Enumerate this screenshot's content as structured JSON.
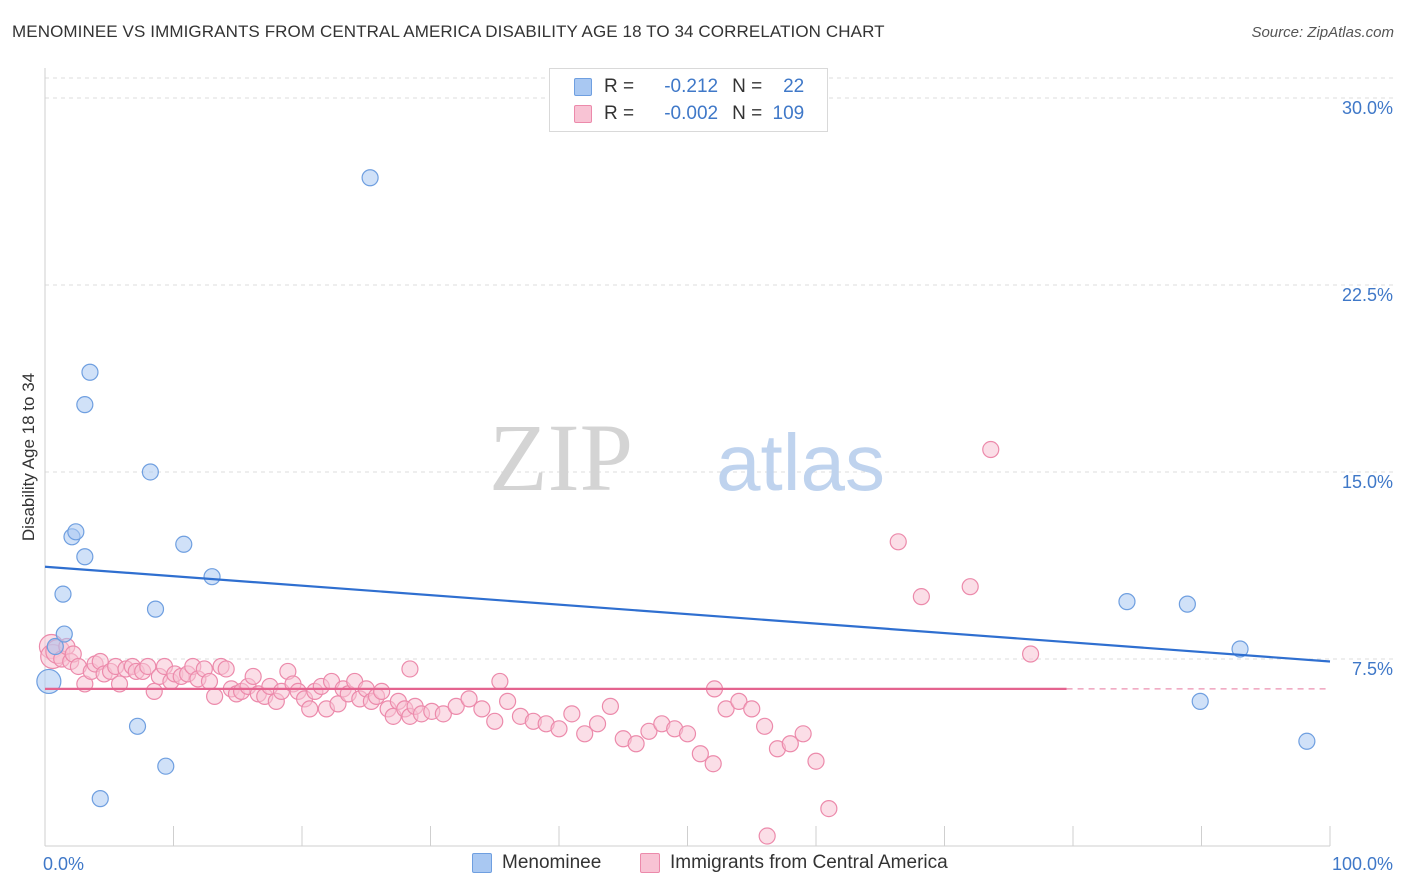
{
  "title": "MENOMINEE VS IMMIGRANTS FROM CENTRAL AMERICA DISABILITY AGE 18 TO 34 CORRELATION CHART",
  "source": "Source: ZipAtlas.com",
  "watermark": {
    "zip": "ZIP",
    "atlas": "atlas"
  },
  "legend": {
    "rows": [
      {
        "r_label": "R =",
        "r_value": "-0.212",
        "n_label": "N =",
        "n_value": "22",
        "color": "#a9c8f2",
        "border": "#6f9fe0"
      },
      {
        "r_label": "R =",
        "r_value": "-0.002",
        "n_label": "N =",
        "n_value": "109",
        "color": "#f8c3d4",
        "border": "#ec8aab"
      }
    ]
  },
  "bottom_legend": [
    {
      "label": "Menominee",
      "color": "#a9c8f2",
      "border": "#6f9fe0"
    },
    {
      "label": "Immigrants from Central America",
      "color": "#f8c3d4",
      "border": "#ec8aab"
    }
  ],
  "chart_data": {
    "type": "scatter",
    "title": "MENOMINEE VS IMMIGRANTS FROM CENTRAL AMERICA DISABILITY AGE 18 TO 34 CORRELATION CHART",
    "xlabel": "",
    "ylabel": "Disability Age 18 to 34",
    "xlim": [
      0,
      100
    ],
    "ylim": [
      0,
      30.8
    ],
    "x_tick_labels": [
      "0.0%",
      "100.0%"
    ],
    "y_ticks": [
      7.5,
      15.0,
      22.5,
      30.0
    ],
    "y_tick_labels": [
      "7.5%",
      "15.0%",
      "22.5%",
      "30.0%"
    ],
    "grid": true,
    "series": [
      {
        "name": "Menominee",
        "color": "#a9c8f2",
        "stroke": "#6f9fe0",
        "trend": {
          "x": [
            0,
            100
          ],
          "y": [
            11.2,
            7.4
          ],
          "color": "#2f6fd0"
        },
        "points": [
          [
            0.3,
            6.6
          ],
          [
            0.8,
            8.0
          ],
          [
            1.4,
            10.1
          ],
          [
            1.5,
            8.5
          ],
          [
            2.1,
            12.4
          ],
          [
            2.4,
            12.6
          ],
          [
            3.1,
            11.6
          ],
          [
            3.1,
            17.7
          ],
          [
            3.5,
            19.0
          ],
          [
            4.3,
            1.9
          ],
          [
            7.2,
            4.8
          ],
          [
            8.2,
            15.0
          ],
          [
            8.6,
            9.5
          ],
          [
            9.4,
            3.2
          ],
          [
            10.8,
            12.1
          ],
          [
            13.0,
            10.8
          ],
          [
            25.3,
            26.8
          ],
          [
            84.2,
            9.8
          ],
          [
            88.9,
            9.7
          ],
          [
            89.9,
            5.8
          ],
          [
            93.0,
            7.9
          ],
          [
            98.2,
            4.2
          ]
        ],
        "sizes_large": [
          0
        ]
      },
      {
        "name": "Immigrants from Central America",
        "color": "#f8c3d4",
        "stroke": "#ec8aab",
        "trend": {
          "x": [
            0,
            79.5
          ],
          "y": [
            6.3,
            6.3
          ],
          "dashed_to": 100,
          "color": "#e4638f"
        },
        "points": [
          [
            0.5,
            8.0
          ],
          [
            0.6,
            7.6
          ],
          [
            1.0,
            7.8
          ],
          [
            1.3,
            7.5
          ],
          [
            1.7,
            8.0
          ],
          [
            2.0,
            7.4
          ],
          [
            2.2,
            7.7
          ],
          [
            2.6,
            7.2
          ],
          [
            3.1,
            6.5
          ],
          [
            3.6,
            7.0
          ],
          [
            3.9,
            7.3
          ],
          [
            4.3,
            7.4
          ],
          [
            4.6,
            6.9
          ],
          [
            5.1,
            7.0
          ],
          [
            5.5,
            7.2
          ],
          [
            5.8,
            6.5
          ],
          [
            6.3,
            7.1
          ],
          [
            6.8,
            7.2
          ],
          [
            7.1,
            7.0
          ],
          [
            7.6,
            7.0
          ],
          [
            8.0,
            7.2
          ],
          [
            8.5,
            6.2
          ],
          [
            8.9,
            6.8
          ],
          [
            9.3,
            7.2
          ],
          [
            9.8,
            6.6
          ],
          [
            10.1,
            6.9
          ],
          [
            10.6,
            6.8
          ],
          [
            11.1,
            6.9
          ],
          [
            11.5,
            7.2
          ],
          [
            11.9,
            6.7
          ],
          [
            12.4,
            7.1
          ],
          [
            12.8,
            6.6
          ],
          [
            13.2,
            6.0
          ],
          [
            13.7,
            7.2
          ],
          [
            14.1,
            7.1
          ],
          [
            14.5,
            6.3
          ],
          [
            14.9,
            6.1
          ],
          [
            15.3,
            6.2
          ],
          [
            15.8,
            6.4
          ],
          [
            16.2,
            6.8
          ],
          [
            16.6,
            6.1
          ],
          [
            17.1,
            6.0
          ],
          [
            17.5,
            6.4
          ],
          [
            18.0,
            5.8
          ],
          [
            18.4,
            6.2
          ],
          [
            18.9,
            7.0
          ],
          [
            19.3,
            6.5
          ],
          [
            19.7,
            6.2
          ],
          [
            20.2,
            5.9
          ],
          [
            20.6,
            5.5
          ],
          [
            21.0,
            6.2
          ],
          [
            21.5,
            6.4
          ],
          [
            21.9,
            5.5
          ],
          [
            22.3,
            6.6
          ],
          [
            22.8,
            5.7
          ],
          [
            23.2,
            6.3
          ],
          [
            23.6,
            6.1
          ],
          [
            24.1,
            6.6
          ],
          [
            24.5,
            5.9
          ],
          [
            25.0,
            6.3
          ],
          [
            25.4,
            5.8
          ],
          [
            25.8,
            6.0
          ],
          [
            26.2,
            6.2
          ],
          [
            26.7,
            5.5
          ],
          [
            27.1,
            5.2
          ],
          [
            27.5,
            5.8
          ],
          [
            28.0,
            5.5
          ],
          [
            28.4,
            5.2
          ],
          [
            28.8,
            5.6
          ],
          [
            29.3,
            5.3
          ],
          [
            30.1,
            5.4
          ],
          [
            31.0,
            5.3
          ],
          [
            32.0,
            5.6
          ],
          [
            33.0,
            5.9
          ],
          [
            34.0,
            5.5
          ],
          [
            35.0,
            5.0
          ],
          [
            36.0,
            5.8
          ],
          [
            37.0,
            5.2
          ],
          [
            38.0,
            5.0
          ],
          [
            39.0,
            4.9
          ],
          [
            40.0,
            4.7
          ],
          [
            41.0,
            5.3
          ],
          [
            42.0,
            4.5
          ],
          [
            43.0,
            4.9
          ],
          [
            44.0,
            5.6
          ],
          [
            45.0,
            4.3
          ],
          [
            46.0,
            4.1
          ],
          [
            47.0,
            4.6
          ],
          [
            48.0,
            4.9
          ],
          [
            49.0,
            4.7
          ],
          [
            50.0,
            4.5
          ],
          [
            51.0,
            3.7
          ],
          [
            52.0,
            3.3
          ],
          [
            53.0,
            5.5
          ],
          [
            54.0,
            5.8
          ],
          [
            55.0,
            5.5
          ],
          [
            56.0,
            4.8
          ],
          [
            57.0,
            3.9
          ],
          [
            58.0,
            4.1
          ],
          [
            59.0,
            4.5
          ],
          [
            60.0,
            3.4
          ],
          [
            61.0,
            1.5
          ],
          [
            35.4,
            6.6
          ],
          [
            28.4,
            7.1
          ],
          [
            52.1,
            6.3
          ],
          [
            66.4,
            12.2
          ],
          [
            68.2,
            10.0
          ],
          [
            72.0,
            10.4
          ],
          [
            73.6,
            15.9
          ],
          [
            76.7,
            7.7
          ],
          [
            56.2,
            0.4
          ]
        ],
        "sizes_large": [
          0,
          1,
          2
        ]
      }
    ]
  }
}
